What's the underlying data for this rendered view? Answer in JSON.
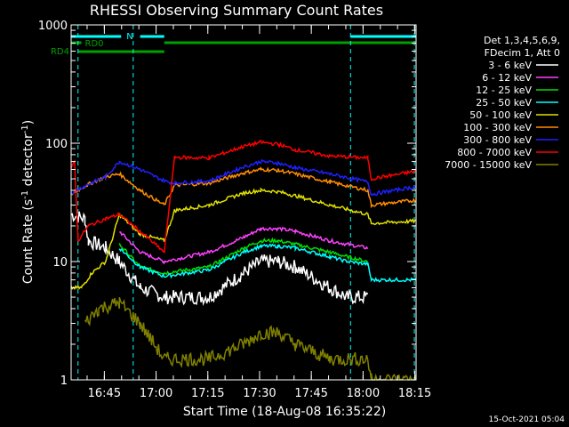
{
  "chart_data": {
    "type": "line",
    "title": "RHESSI Observing Summary Count Rates",
    "xlabel": "Start Time (18-Aug-08 16:35:22)",
    "ylabel_main": "Count Rate (s",
    "ylabel_sup1": "-1",
    "ylabel_mid": " detector",
    "ylabel_sup2": "-1",
    "ylabel_end": ")",
    "yscale": "log",
    "ylim": [
      1,
      1000
    ],
    "xlim_minutes": [
      0,
      100
    ],
    "xticks": [
      {
        "label": "16:45",
        "minutes": 9.63
      },
      {
        "label": "17:00",
        "minutes": 24.63
      },
      {
        "label": "17:15",
        "minutes": 39.63
      },
      {
        "label": "17:30",
        "minutes": 54.63
      },
      {
        "label": "17:45",
        "minutes": 69.63
      },
      {
        "label": "18:00",
        "minutes": 84.63
      },
      {
        "label": "18:15",
        "minutes": 99.63
      }
    ],
    "yticks": [
      {
        "label": "1",
        "value": 1
      },
      {
        "label": "10",
        "value": 10
      },
      {
        "label": "100",
        "value": 100
      },
      {
        "label": "1000",
        "value": 1000
      }
    ],
    "legend_header": [
      "Det 1,3,4,5,6,9,",
      "FDecim 1, Att 0"
    ],
    "series": [
      {
        "name": "3 - 6 keV",
        "color": "#ffffff",
        "points": [
          [
            0,
            25
          ],
          [
            4,
            23
          ],
          [
            5,
            15
          ],
          [
            10,
            13
          ],
          [
            14,
            10
          ],
          [
            20,
            6
          ],
          [
            27,
            5
          ],
          [
            40,
            5
          ],
          [
            50,
            8
          ],
          [
            55,
            10
          ],
          [
            60,
            10
          ],
          [
            65,
            9
          ],
          [
            75,
            6
          ],
          [
            80,
            5
          ],
          [
            86,
            5
          ]
        ]
      },
      {
        "name": "6 - 12 keV",
        "color": "#ff40ff",
        "points": [
          [
            14,
            18
          ],
          [
            20,
            12
          ],
          [
            27,
            10
          ],
          [
            40,
            12
          ],
          [
            50,
            16
          ],
          [
            55,
            19
          ],
          [
            60,
            19
          ],
          [
            65,
            18
          ],
          [
            75,
            15
          ],
          [
            80,
            14
          ],
          [
            86,
            13
          ]
        ]
      },
      {
        "name": "12 - 25 keV",
        "color": "#00e000",
        "points": [
          [
            14,
            14
          ],
          [
            20,
            9
          ],
          [
            27,
            8
          ],
          [
            40,
            9
          ],
          [
            50,
            13
          ],
          [
            55,
            15
          ],
          [
            60,
            15
          ],
          [
            65,
            14
          ],
          [
            75,
            12
          ],
          [
            80,
            11
          ],
          [
            86,
            10
          ]
        ]
      },
      {
        "name": "25 - 50 keV",
        "color": "#00ffff",
        "points": [
          [
            14,
            13
          ],
          [
            20,
            9
          ],
          [
            27,
            7.5
          ],
          [
            40,
            8.5
          ],
          [
            50,
            12
          ],
          [
            55,
            13.5
          ],
          [
            60,
            13.5
          ],
          [
            65,
            13
          ],
          [
            75,
            11
          ],
          [
            80,
            10
          ],
          [
            86,
            9.5
          ],
          [
            87,
            7
          ],
          [
            100,
            7
          ]
        ]
      },
      {
        "name": "50 - 100 keV",
        "color": "#e0e000",
        "points": [
          [
            0,
            6
          ],
          [
            3,
            6
          ],
          [
            6,
            8
          ],
          [
            10,
            10
          ],
          [
            14,
            25
          ],
          [
            20,
            17
          ],
          [
            27,
            15
          ],
          [
            30,
            27
          ],
          [
            40,
            30
          ],
          [
            50,
            38
          ],
          [
            55,
            40
          ],
          [
            60,
            39
          ],
          [
            65,
            36
          ],
          [
            75,
            30
          ],
          [
            86,
            25
          ],
          [
            87,
            21
          ],
          [
            100,
            22
          ]
        ]
      },
      {
        "name": "100 - 300 keV",
        "color": "#ff8c00",
        "points": [
          [
            0,
            37
          ],
          [
            5,
            45
          ],
          [
            10,
            52
          ],
          [
            14,
            55
          ],
          [
            20,
            40
          ],
          [
            27,
            30
          ],
          [
            30,
            44
          ],
          [
            40,
            46
          ],
          [
            50,
            56
          ],
          [
            55,
            60
          ],
          [
            60,
            59
          ],
          [
            65,
            55
          ],
          [
            75,
            47
          ],
          [
            86,
            40
          ],
          [
            87,
            30
          ],
          [
            100,
            33
          ]
        ]
      },
      {
        "name": "300 - 800 keV",
        "color": "#2020ff",
        "points": [
          [
            0,
            38
          ],
          [
            5,
            45
          ],
          [
            10,
            52
          ],
          [
            14,
            70
          ],
          [
            20,
            60
          ],
          [
            27,
            48
          ],
          [
            30,
            46
          ],
          [
            40,
            48
          ],
          [
            50,
            63
          ],
          [
            55,
            70
          ],
          [
            60,
            68
          ],
          [
            65,
            62
          ],
          [
            75,
            55
          ],
          [
            86,
            47
          ],
          [
            87,
            37
          ],
          [
            100,
            43
          ]
        ]
      },
      {
        "name": "800 - 7000 keV",
        "color": "#ff0000",
        "points": [
          [
            0,
            60
          ],
          [
            1,
            70
          ],
          [
            2,
            15
          ],
          [
            5,
            20
          ],
          [
            10,
            23
          ],
          [
            14,
            25
          ],
          [
            20,
            18
          ],
          [
            27,
            12
          ],
          [
            30,
            76
          ],
          [
            40,
            75
          ],
          [
            50,
            94
          ],
          [
            55,
            102
          ],
          [
            60,
            98
          ],
          [
            65,
            88
          ],
          [
            75,
            78
          ],
          [
            86,
            75
          ],
          [
            87,
            50
          ],
          [
            100,
            58
          ]
        ]
      },
      {
        "name": "7000 - 15000 keV",
        "color": "#808000",
        "points": [
          [
            4,
            3
          ],
          [
            8,
            4
          ],
          [
            14,
            4.5
          ],
          [
            20,
            3
          ],
          [
            27,
            1.5
          ],
          [
            40,
            1.5
          ],
          [
            50,
            2
          ],
          [
            55,
            2.5
          ],
          [
            60,
            2.5
          ],
          [
            65,
            2
          ],
          [
            75,
            1.5
          ],
          [
            86,
            1.5
          ],
          [
            87,
            1
          ],
          [
            100,
            1
          ]
        ]
      }
    ],
    "flags": [
      {
        "label": "N",
        "color": "#00ffff"
      },
      {
        "label": "RD0",
        "color": "#00a000"
      },
      {
        "label": "RD4",
        "color": "#00a000"
      }
    ]
  },
  "timestamp": "15-Oct-2021 05:04"
}
